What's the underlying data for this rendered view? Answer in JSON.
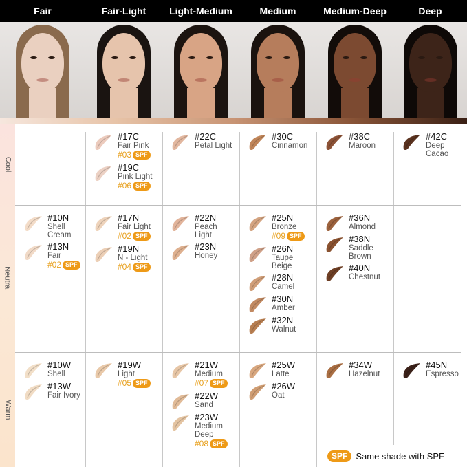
{
  "columns": [
    {
      "label": "Fair",
      "skin": "#ead0c0",
      "hair": "#8a6a4d"
    },
    {
      "label": "Fair-Light",
      "skin": "#e6c4ac",
      "hair": "#1a1411"
    },
    {
      "label": "Light-Medium",
      "skin": "#d8a485",
      "hair": "#1c1410"
    },
    {
      "label": "Medium",
      "skin": "#b67d5c",
      "hair": "#1a120e"
    },
    {
      "label": "Medium-Deep",
      "skin": "#7c4a31",
      "hair": "#120c09"
    },
    {
      "label": "Deep",
      "skin": "#3d2419",
      "hair": "#0e0907"
    }
  ],
  "rows": [
    {
      "label": "Cool",
      "cells": [
        [],
        [
          {
            "code": "#17C",
            "name": "Fair Pink",
            "spf": "#03",
            "color": "#eccbbd"
          },
          {
            "code": "#19C",
            "name": "Pink Light",
            "spf": "#06",
            "color": "#ecd1c4"
          }
        ],
        [
          {
            "code": "#22C",
            "name": "Petal Light",
            "color": "#e2b79f"
          }
        ],
        [
          {
            "code": "#30C",
            "name": "Cinnamon",
            "color": "#c08559"
          }
        ],
        [
          {
            "code": "#38C",
            "name": "Maroon",
            "color": "#8c5236"
          }
        ],
        [
          {
            "code": "#42C",
            "name": "Deep\nCacao",
            "color": "#5a321f"
          }
        ]
      ]
    },
    {
      "label": "Neutral",
      "cells": [
        [
          {
            "code": "#10N",
            "name": "Shell\nCream",
            "color": "#f3dcc8"
          },
          {
            "code": "#13N",
            "name": "Fair",
            "spf": "#02",
            "color": "#f1dac7"
          }
        ],
        [
          {
            "code": "#17N",
            "name": "Fair Light",
            "spf": "#02",
            "color": "#eed3bb"
          },
          {
            "code": "#19N",
            "name": "N - Light",
            "spf": "#04",
            "color": "#eccfb6"
          }
        ],
        [
          {
            "code": "#22N",
            "name": "Peach\nLight",
            "color": "#e2b49b"
          },
          {
            "code": "#23N",
            "name": "Honey",
            "color": "#deb08f"
          }
        ],
        [
          {
            "code": "#25N",
            "name": "Bronze",
            "spf": "#09",
            "color": "#d4a481"
          },
          {
            "code": "#26N",
            "name": "Taupe\nBeige",
            "color": "#cfa088"
          },
          {
            "code": "#28N",
            "name": "Camel",
            "color": "#d09e78"
          },
          {
            "code": "#30N",
            "name": "Amber",
            "color": "#c28a62"
          },
          {
            "code": "#32N",
            "name": "Walnut",
            "color": "#b77e51"
          }
        ],
        [
          {
            "code": "#36N",
            "name": "Almond",
            "color": "#9c623d"
          },
          {
            "code": "#38N",
            "name": "Saddle\nBrown",
            "color": "#8a5230"
          },
          {
            "code": "#40N",
            "name": "Chestnut",
            "color": "#6e3f25"
          }
        ],
        []
      ]
    },
    {
      "label": "Warm",
      "cells": [
        [
          {
            "code": "#10W",
            "name": "Shell",
            "color": "#f2dfc8"
          },
          {
            "code": "#13W",
            "name": "Fair Ivory",
            "color": "#f1dcc4"
          }
        ],
        [
          {
            "code": "#19W",
            "name": "Light",
            "spf": "#05",
            "color": "#e9c9a9"
          }
        ],
        [
          {
            "code": "#21W",
            "name": "Medium",
            "spf": "#07",
            "color": "#e7c6a6"
          },
          {
            "code": "#22W",
            "name": "Sand",
            "color": "#e1bb98"
          },
          {
            "code": "#23W",
            "name": "Medium\nDeep",
            "spf": "#08",
            "color": "#e4c4a2"
          }
        ],
        [
          {
            "code": "#25W",
            "name": "Latte",
            "color": "#d8a77f"
          },
          {
            "code": "#26W",
            "name": "Oat",
            "color": "#cf9d73"
          }
        ],
        [
          {
            "code": "#34W",
            "name": "Hazelnut",
            "color": "#a96e43"
          }
        ],
        [
          {
            "code": "#45N",
            "name": "Espresso",
            "color": "#3b2119"
          }
        ]
      ]
    }
  ],
  "spf_badge": "SPF",
  "legend": {
    "badge": "SPF",
    "text": "Same shade with SPF"
  },
  "accent": "#ee9a17"
}
